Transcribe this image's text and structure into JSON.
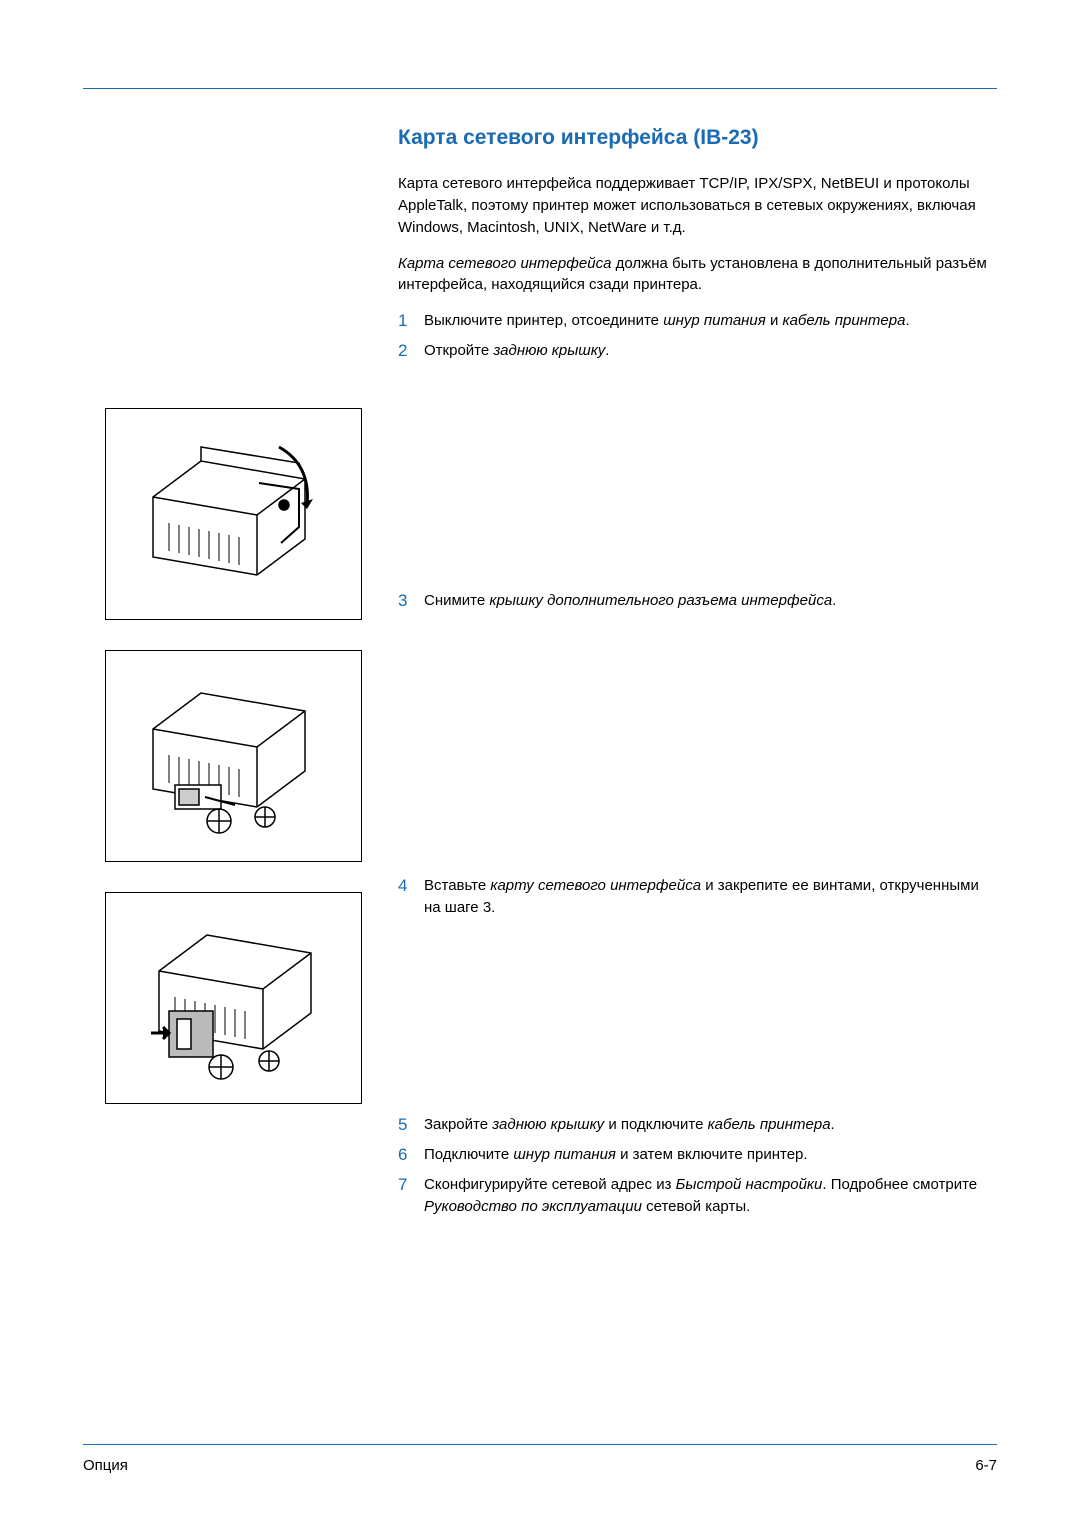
{
  "colors": {
    "accent": "#1a6bb3",
    "text": "#000000",
    "background": "#ffffff"
  },
  "typography": {
    "body_font": "Arial",
    "body_size_pt": 11,
    "heading_size_pt": 16,
    "heading_weight": "bold",
    "heading_color": "#1a6bb3"
  },
  "heading": "Карта сетевого интерфейса (IB-23)",
  "intro_paragraph": "Карта сетевого интерфейса поддерживает TCP/IP, IPX/SPX, NetBEUI и протоколы AppleTalk, поэтому принтер может  использоваться в сетевых окружениях, включая Windows, Macintosh, UNIX, NetWare и т.д.",
  "install_note": {
    "italic_lead": "Карта сетевого интерфейса",
    "rest": " должна быть установлена в дополнительный разъём интерфейса, находящийся сзади принтера."
  },
  "steps": [
    {
      "num": "1",
      "segments": [
        {
          "t": "Выключите принтер, отсоедините ",
          "i": false
        },
        {
          "t": "шнур питания",
          "i": true
        },
        {
          "t": " и ",
          "i": false
        },
        {
          "t": "кабель принтера",
          "i": true
        },
        {
          "t": ".",
          "i": false
        }
      ]
    },
    {
      "num": "2",
      "segments": [
        {
          "t": "Откройте ",
          "i": false
        },
        {
          "t": "заднюю крышку",
          "i": true
        },
        {
          "t": ".",
          "i": false
        }
      ]
    },
    {
      "num": "3",
      "segments": [
        {
          "t": "Снимите ",
          "i": false
        },
        {
          "t": "крышку дополнительного разъема интерфейса",
          "i": true
        },
        {
          "t": ".",
          "i": false
        }
      ]
    },
    {
      "num": "4",
      "segments": [
        {
          "t": "Вставьте ",
          "i": false
        },
        {
          "t": "карту сетевого интерфейса",
          "i": true
        },
        {
          "t": " и закрепите ее винтами, открученными на шаге 3.",
          "i": false
        }
      ]
    },
    {
      "num": "5",
      "segments": [
        {
          "t": "Закройте ",
          "i": false
        },
        {
          "t": "заднюю крышку",
          "i": true
        },
        {
          "t": " и подключите ",
          "i": false
        },
        {
          "t": "кабель принтера",
          "i": true
        },
        {
          "t": ".",
          "i": false
        }
      ]
    },
    {
      "num": "6",
      "segments": [
        {
          "t": "Подключите ",
          "i": false
        },
        {
          "t": "шнур питания",
          "i": true
        },
        {
          "t": " и затем включите принтер.",
          "i": false
        }
      ]
    },
    {
      "num": "7",
      "segments": [
        {
          "t": "Сконфигурируйте сетевой адрес из ",
          "i": false
        },
        {
          "t": "Быстрой настройки",
          "i": true
        },
        {
          "t": ". Подробнее смотрите ",
          "i": false
        },
        {
          "t": "Руководство по эксплуатации",
          "i": true
        },
        {
          "t": " сетевой карты.",
          "i": false
        }
      ]
    }
  ],
  "figures": [
    {
      "name": "printer-back-cover-open"
    },
    {
      "name": "printer-remove-slot-cover"
    },
    {
      "name": "printer-insert-card"
    }
  ],
  "footer": {
    "left": "Опция",
    "right": "6-7"
  }
}
